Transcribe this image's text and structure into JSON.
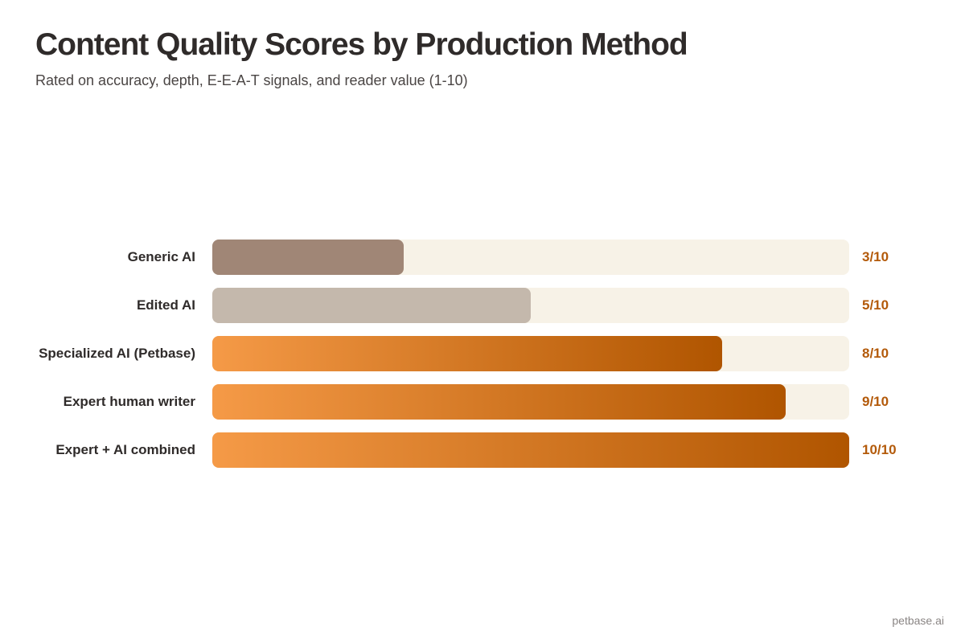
{
  "chart_data": {
    "type": "bar",
    "orientation": "horizontal",
    "title": "Content Quality Scores by Production Method",
    "subtitle": "Rated on accuracy, depth, E-E-A-T signals, and reader value (1-10)",
    "xlim": [
      0,
      10
    ],
    "categories": [
      "Generic AI",
      "Edited AI",
      "Specialized AI (Petbase)",
      "Expert human writer",
      "Expert + AI combined"
    ],
    "values": [
      3,
      5,
      8,
      9,
      10
    ],
    "value_labels": [
      "3/10",
      "5/10",
      "8/10",
      "9/10",
      "10/10"
    ],
    "bar_colors": [
      "#a08676",
      "#c4b8ac",
      "gradient",
      "gradient",
      "gradient"
    ]
  },
  "colors": {
    "gradient_start": "#f59a47",
    "gradient_end": "#b05500",
    "track": "#f7f2e7",
    "value_text": "#b35a0a"
  },
  "footer": "petbase.ai"
}
